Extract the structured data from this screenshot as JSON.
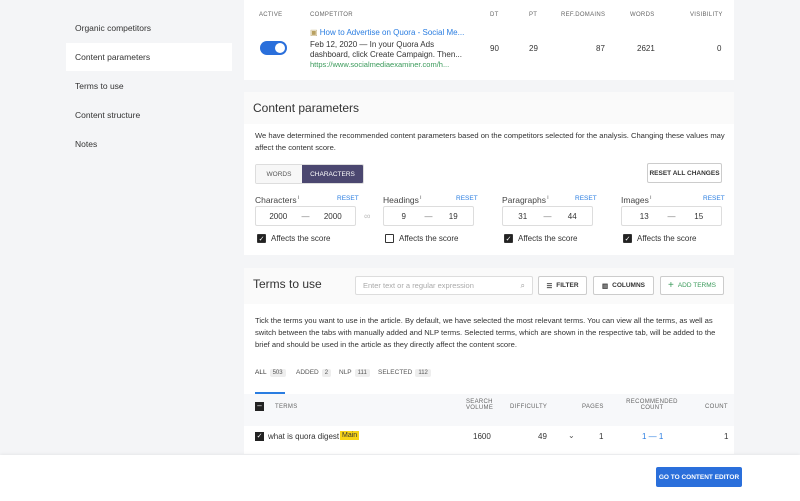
{
  "sidebar": {
    "items": [
      {
        "label": "Organic competitors"
      },
      {
        "label": "Content parameters",
        "active": true
      },
      {
        "label": "Terms to use"
      },
      {
        "label": "Content structure"
      },
      {
        "label": "Notes"
      }
    ]
  },
  "competitors": {
    "headers": {
      "active": "ACTIVE",
      "competitor": "COMPETITOR",
      "dt": "DT",
      "pt": "PT",
      "ref_domains": "REF.DOMAINS",
      "words": "WORDS",
      "visibility": "VISIBILITY"
    },
    "rows": [
      {
        "active": true,
        "title": "How to Advertise on Quora - Social Me...",
        "snippet_1": "Feb 12, 2020 — In your Quora Ads",
        "snippet_2": "dashboard, click Create Campaign. Then...",
        "url": "https://www.socialmediaexaminer.com/h...",
        "dt": "90",
        "pt": "29",
        "ref_domains": "87",
        "words": "2621",
        "visibility": "0"
      }
    ]
  },
  "content_parameters": {
    "title": "Content parameters",
    "description": "We have determined the recommended content parameters based on the competitors selected for the analysis. Changing these values may affect the content score.",
    "toggle": {
      "words": "WORDS",
      "characters": "CHARACTERS",
      "selected": "characters"
    },
    "reset_all": "RESET ALL CHANGES",
    "reset": "RESET",
    "affects": "Affects the score",
    "params": [
      {
        "label": "Characters",
        "min": "2000",
        "max": "2000",
        "affects": true
      },
      {
        "label": "Headings",
        "min": "9",
        "max": "19",
        "affects": false
      },
      {
        "label": "Paragraphs",
        "min": "31",
        "max": "44",
        "affects": true
      },
      {
        "label": "Images",
        "min": "13",
        "max": "15",
        "affects": true
      }
    ]
  },
  "terms": {
    "title": "Terms to use",
    "search_placeholder": "Enter text or a regular expression",
    "filter": "FILTER",
    "columns": "COLUMNS",
    "add_terms": "ADD TERMS",
    "description": "Tick the terms you want to use in the article. By default, we have selected the most relevant terms. You can view all the terms, as well as switch between the tabs with manually added and NLP terms. Selected terms, which are shown in the respective tab, will be added to the brief and should be used in the article as they directly affect the content score.",
    "tabs": [
      {
        "label": "ALL",
        "count": "503",
        "active": true
      },
      {
        "label": "ADDED",
        "count": "2"
      },
      {
        "label": "NLP",
        "count": "111"
      },
      {
        "label": "SELECTED",
        "count": "112"
      }
    ],
    "headers": {
      "terms": "TERMS",
      "search_volume_1": "SEARCH",
      "search_volume_2": "VOLUME",
      "difficulty": "DIFFICULTY",
      "pages": "PAGES",
      "rec_1": "RECOMMENDED",
      "rec_2": "COUNT",
      "count": "COUNT"
    },
    "rows": [
      {
        "term": "what is quora digest",
        "badge": "Main",
        "volume": "1600",
        "difficulty": "49",
        "pages": "1",
        "recommended": "1 — 1",
        "count": "1",
        "checked": true
      }
    ]
  },
  "footer": {
    "button": "GO TO CONTENT EDITOR"
  },
  "colors": {
    "accent": "#2a7de1",
    "primary_dark": "#4b4770",
    "badge": "#f7d417",
    "link_green": "#3a9a5a"
  }
}
